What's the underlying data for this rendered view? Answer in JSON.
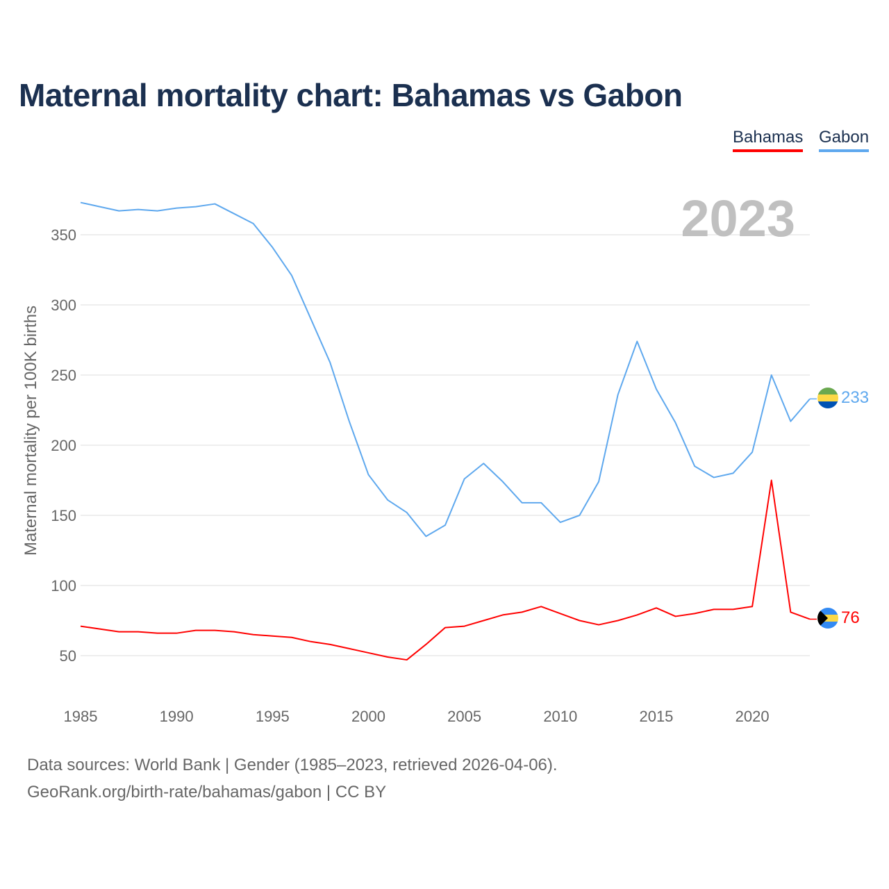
{
  "chart_data": {
    "type": "line",
    "title": "Maternal mortality chart: Bahamas vs Gabon",
    "ylabel": "Maternal mortality per 100K births",
    "xlabel": "",
    "year_watermark": "2023",
    "x": [
      1985,
      1986,
      1987,
      1988,
      1989,
      1990,
      1991,
      1992,
      1993,
      1994,
      1995,
      1996,
      1997,
      1998,
      1999,
      2000,
      2001,
      2002,
      2003,
      2004,
      2005,
      2006,
      2007,
      2008,
      2009,
      2010,
      2011,
      2012,
      2013,
      2014,
      2015,
      2016,
      2017,
      2018,
      2019,
      2020,
      2021,
      2022,
      2023
    ],
    "xlim": [
      1985,
      2023
    ],
    "ylim": [
      25,
      385
    ],
    "xticks": [
      1985,
      1990,
      1995,
      2000,
      2005,
      2010,
      2015,
      2020
    ],
    "yticks": [
      50,
      100,
      150,
      200,
      250,
      300,
      350
    ],
    "grid": true,
    "legend_placement": "top-right",
    "series": [
      {
        "name": "Bahamas",
        "color": "#ff0000",
        "end_label": "76",
        "values": [
          71,
          69,
          67,
          67,
          66,
          66,
          68,
          68,
          67,
          65,
          64,
          63,
          60,
          58,
          55,
          52,
          49,
          47,
          58,
          70,
          71,
          75,
          79,
          81,
          85,
          80,
          75,
          72,
          75,
          79,
          84,
          78,
          80,
          83,
          83,
          85,
          175,
          81,
          76
        ]
      },
      {
        "name": "Gabon",
        "color": "#5ea8ee",
        "end_label": "233",
        "values": [
          373,
          370,
          367,
          368,
          367,
          369,
          370,
          372,
          365,
          358,
          341,
          321,
          290,
          259,
          217,
          179,
          161,
          152,
          135,
          143,
          176,
          187,
          174,
          159,
          159,
          145,
          150,
          174,
          236,
          274,
          240,
          216,
          185,
          177,
          180,
          195,
          250,
          217,
          233
        ]
      }
    ]
  },
  "footer": {
    "sources": "Data sources: World Bank | Gender (1985–2023, retrieved 2026-04-06).",
    "link": "GeoRank.org/birth-rate/bahamas/gabon | CC BY"
  }
}
